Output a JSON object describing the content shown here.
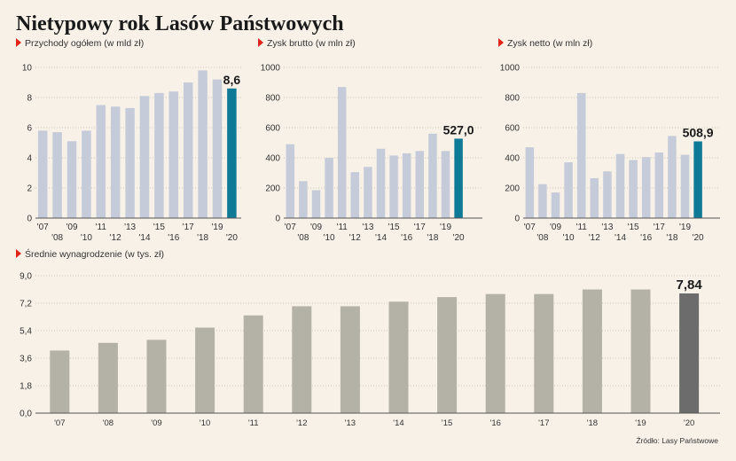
{
  "title": "Nietypowy rok Lasów Państwowych",
  "source": "Źródło: Lasy Państwowe",
  "colors": {
    "background": "#f7f1e8",
    "marker": "#e2231a",
    "bar_top": "#c6cbd9",
    "bar_top_highlight": "#0e7a96",
    "bar_bottom": "#b4b2a6",
    "bar_bottom_highlight": "#6c6c6c"
  },
  "chart_data": [
    {
      "type": "bar",
      "title": "Przychody ogółem (w mld zł)",
      "categories": [
        "'07",
        "'08",
        "'09",
        "'10",
        "'11",
        "'12",
        "'13",
        "'14",
        "'15",
        "'16",
        "'17",
        "'18",
        "'19",
        "'20"
      ],
      "values": [
        5.8,
        5.7,
        5.1,
        5.8,
        7.5,
        7.4,
        7.3,
        8.1,
        8.3,
        8.4,
        9.0,
        9.8,
        9.2,
        8.6
      ],
      "highlight_label": "8,6",
      "yticks": [
        "0",
        "2",
        "4",
        "6",
        "8",
        "10"
      ],
      "ylim": [
        0,
        10
      ]
    },
    {
      "type": "bar",
      "title": "Zysk brutto (w mln zł)",
      "categories": [
        "'07",
        "'08",
        "'09",
        "'10",
        "'11",
        "'12",
        "'13",
        "'14",
        "'15",
        "'16",
        "'17",
        "'18",
        "'19",
        "'20"
      ],
      "values": [
        490,
        245,
        185,
        400,
        870,
        305,
        340,
        460,
        415,
        430,
        445,
        560,
        445,
        527.0
      ],
      "highlight_label": "527,0",
      "yticks": [
        "0",
        "200",
        "400",
        "600",
        "800",
        "1000"
      ],
      "ylim": [
        0,
        1000
      ]
    },
    {
      "type": "bar",
      "title": "Zysk netto (w mln zł)",
      "categories": [
        "'07",
        "'08",
        "'09",
        "'10",
        "'11",
        "'12",
        "'13",
        "'14",
        "'15",
        "'16",
        "'17",
        "'18",
        "'19",
        "'20"
      ],
      "values": [
        470,
        225,
        170,
        370,
        830,
        265,
        310,
        425,
        385,
        405,
        435,
        545,
        420,
        508.9
      ],
      "highlight_label": "508,9",
      "yticks": [
        "0",
        "200",
        "400",
        "600",
        "800",
        "1000"
      ],
      "ylim": [
        0,
        1000
      ]
    },
    {
      "type": "bar",
      "title": "Średnie wynagrodzenie (w tys. zł)",
      "categories": [
        "'07",
        "'08",
        "'09",
        "'10",
        "'11",
        "'12",
        "'13",
        "'14",
        "'15",
        "'16",
        "'17",
        "'18",
        "'19",
        "'20"
      ],
      "values": [
        4.1,
        4.6,
        4.8,
        5.6,
        6.4,
        7.0,
        7.0,
        7.3,
        7.6,
        7.8,
        7.8,
        8.1,
        8.1,
        7.84
      ],
      "highlight_label": "7,84",
      "yticks": [
        "0,0",
        "1,8",
        "3,6",
        "5,4",
        "7,2",
        "9,0"
      ],
      "ylim": [
        0,
        9
      ]
    }
  ]
}
